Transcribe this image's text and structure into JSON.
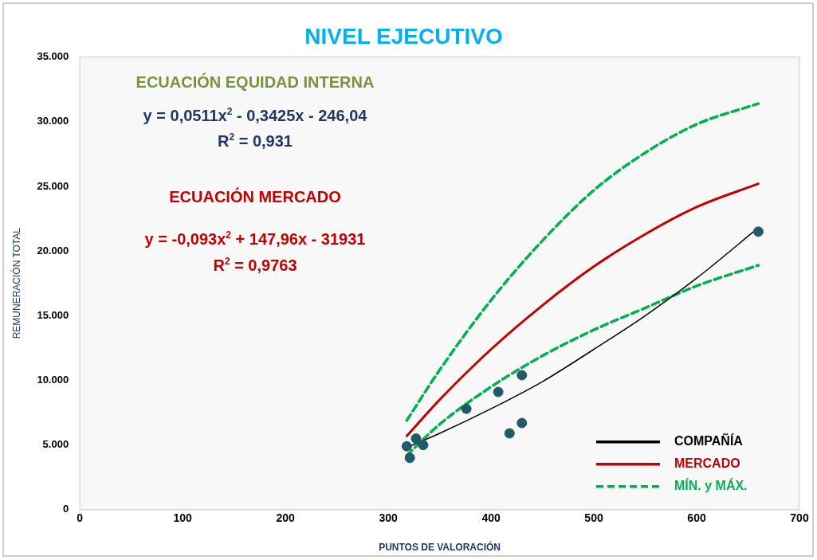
{
  "chart_data": {
    "type": "scatter",
    "title": "NIVEL EJECUTIVO",
    "xlabel": "PUNTOS DE VALORACIÓN",
    "ylabel": "REMUNERACIÓN TOTAL",
    "xlim": [
      0,
      700
    ],
    "xticks": [
      0,
      100,
      200,
      300,
      400,
      500,
      600,
      700
    ],
    "ylim": [
      0,
      35000
    ],
    "yticks": [
      0,
      {
        "value": 5000,
        "label": "5.000"
      },
      {
        "value": 10000,
        "label": "10.000"
      },
      {
        "value": 15000,
        "label": "15.000"
      },
      {
        "value": 20000,
        "label": "20.000"
      },
      {
        "value": 25000,
        "label": "25.000"
      },
      {
        "value": 30000,
        "label": "30.000"
      },
      {
        "value": 35000,
        "label": "35.000"
      }
    ],
    "legend": "bottom right",
    "annotations": [
      "ECUACIÓN EQUIDAD INTERNA",
      "y = 0,0511x$^{2}$ - 0,3425x - 246,04",
      "R$^{2}$ = 0,931",
      "ECUACIÓN MERCADO",
      "y = -0,093x$^{2}$ + 147,96x - 31931",
      "R$^{2}$ = 0,9763"
    ],
    "series": [
      {
        "type": "line",
        "name": "COMPAÑÍA",
        "color": "#000000",
        "line_style": "solid",
        "marker": "none",
        "x": [
          318,
          350,
          400,
          450,
          500,
          550,
          600,
          660
        ],
        "values": [
          4800,
          5900,
          7800,
          9900,
          12400,
          15000,
          17900,
          21800
        ]
      },
      {
        "type": "line",
        "name": "MERCADO",
        "color": "#c00000",
        "line_style": "solid",
        "marker": "none",
        "x": [
          318,
          350,
          400,
          450,
          500,
          550,
          600,
          660
        ],
        "values": [
          5700,
          8500,
          12400,
          15800,
          18800,
          21300,
          23400,
          25200
        ]
      },
      {
        "type": "line",
        "name": "MÍN. y MÁX.",
        "color": "#00b050",
        "line_style": "dashed",
        "marker": "none",
        "x": [
          318,
          350,
          400,
          450,
          500,
          550,
          600,
          660
        ],
        "values": [
          4200,
          6600,
          9500,
          11900,
          13900,
          15600,
          17300,
          18900
        ]
      },
      {
        "type": "line",
        "color": "#00b050",
        "line_style": "dashed",
        "marker": "none",
        "x": [
          318,
          350,
          400,
          450,
          500,
          550,
          600,
          660
        ],
        "values": [
          6900,
          10800,
          16200,
          20800,
          24700,
          27600,
          29800,
          31400
        ]
      },
      {
        "type": "scatter",
        "color": "#235a69",
        "marker": "circle",
        "x": [
          318,
          327,
          334,
          321,
          376,
          407,
          430,
          418,
          430,
          660
        ],
        "values": [
          4900,
          5500,
          5000,
          4000,
          7800,
          9100,
          10400,
          5900,
          6700,
          21500
        ]
      }
    ]
  }
}
